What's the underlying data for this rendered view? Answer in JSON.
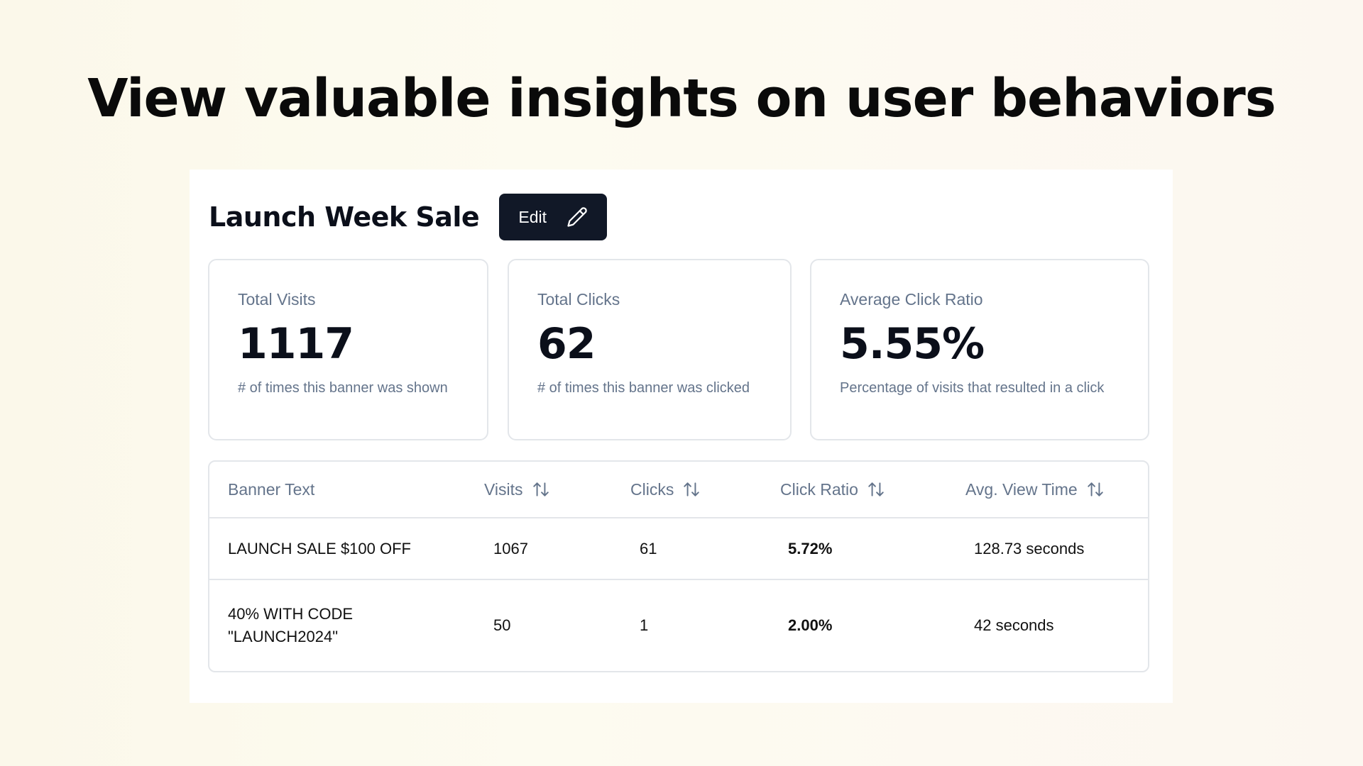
{
  "headline": "View valuable insights on user behaviors",
  "campaign": {
    "title": "Launch Week Sale",
    "edit_label": "Edit"
  },
  "stats": [
    {
      "label": "Total Visits",
      "value": "1117",
      "description": "# of times this banner was shown"
    },
    {
      "label": "Total Clicks",
      "value": "62",
      "description": "# of times this banner was clicked"
    },
    {
      "label": "Average Click Ratio",
      "value": "5.55%",
      "description": "Percentage of visits that resulted in a click"
    }
  ],
  "table": {
    "columns": [
      "Banner Text",
      "Visits",
      "Clicks",
      "Click Ratio",
      "Avg. View Time"
    ],
    "rows": [
      {
        "banner_text": "LAUNCH SALE $100 OFF",
        "visits": "1067",
        "clicks": "61",
        "click_ratio": "5.72%",
        "avg_view_time": "128.73 seconds"
      },
      {
        "banner_text": "40% WITH CODE \"LAUNCH2024\"",
        "visits": "50",
        "clicks": "1",
        "click_ratio": "2.00%",
        "avg_view_time": "42 seconds"
      }
    ]
  },
  "icons": {
    "edit": "pencil-icon",
    "sort": "sort-arrows-icon"
  },
  "colors": {
    "button_bg": "#111827",
    "muted_text": "#64748b",
    "border": "#e3e6ea"
  }
}
